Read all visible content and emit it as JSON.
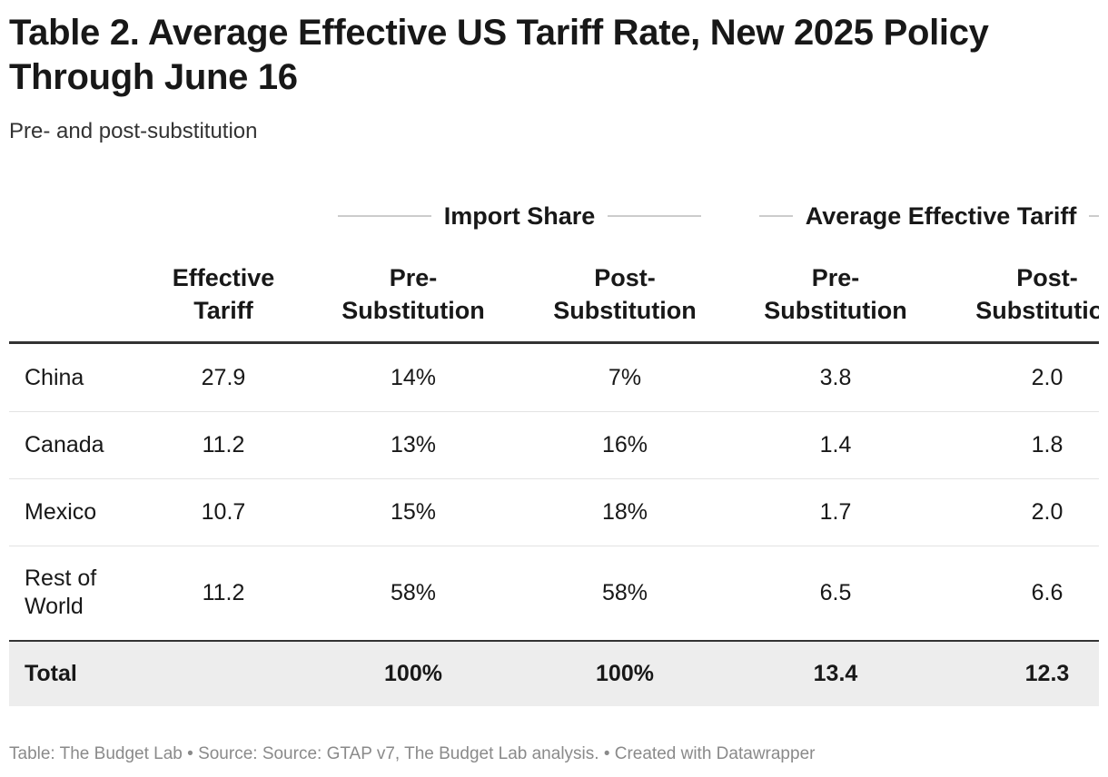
{
  "title": "Table 2. Average Effective US Tariff Rate, New 2025 Policy Through June 16",
  "subtitle": "Pre- and post-substitution",
  "footer": "Table: The Budget Lab • Source: Source: GTAP v7, The Budget Lab analysis. • Created with Datawrapper",
  "chart_data": {
    "type": "table",
    "column_groups": [
      {
        "label": "Import Share",
        "columns": [
          1,
          2
        ]
      },
      {
        "label": "Average Effective Tariff",
        "columns": [
          3,
          4
        ]
      }
    ],
    "columns": [
      "",
      "Effective Tariff",
      "Pre- Substitution",
      "Post- Substitution",
      "Pre- Substitution",
      "Post- Substitution"
    ],
    "rows": [
      {
        "label": "China",
        "values": [
          "27.9",
          "14%",
          "7%",
          "3.8",
          "2.0"
        ]
      },
      {
        "label": "Canada",
        "values": [
          "11.2",
          "13%",
          "16%",
          "1.4",
          "1.8"
        ]
      },
      {
        "label": "Mexico",
        "values": [
          "10.7",
          "15%",
          "18%",
          "1.7",
          "2.0"
        ]
      },
      {
        "label": "Rest of World",
        "values": [
          "11.2",
          "58%",
          "58%",
          "6.5",
          "6.6"
        ]
      }
    ],
    "total": {
      "label": "Total",
      "values": [
        "",
        "100%",
        "100%",
        "13.4",
        "12.3"
      ]
    },
    "colors": {
      "total_background": "#ededed",
      "rule": "#333333",
      "group_line": "#cccccc"
    }
  }
}
